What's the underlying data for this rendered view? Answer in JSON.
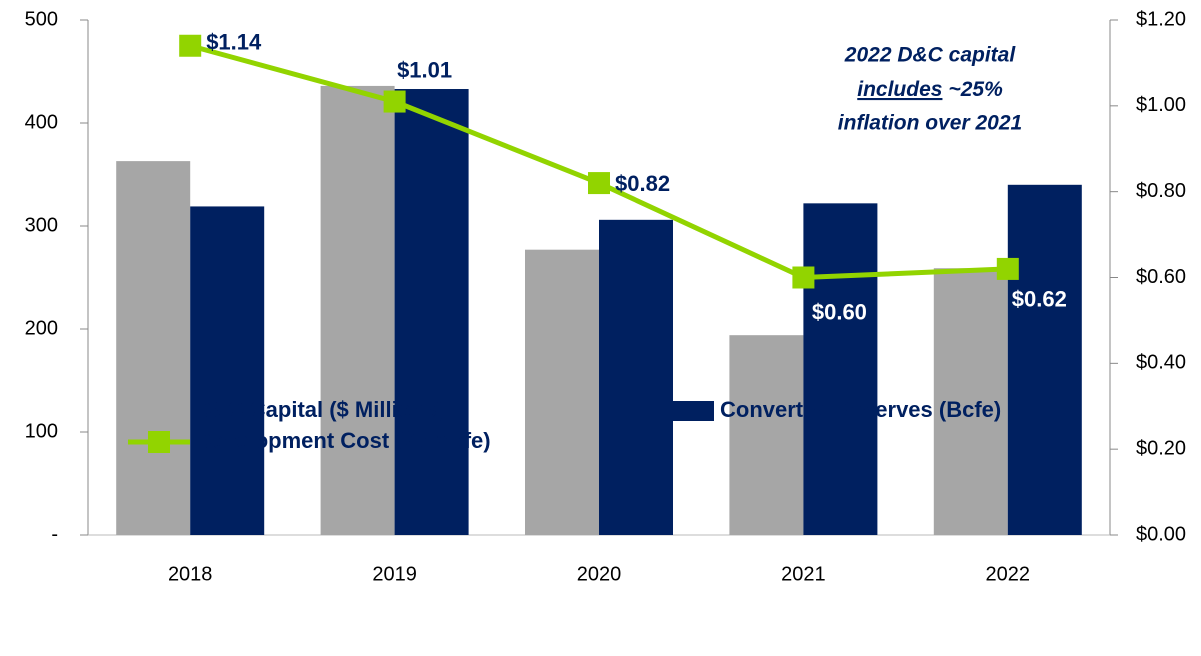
{
  "chart_data": {
    "type": "bar_line",
    "categories": [
      "2018",
      "2019",
      "2020",
      "2021",
      "2022"
    ],
    "series": [
      {
        "name": "D&C Capital ($ Millions)",
        "color": "#a6a6a6",
        "type": "bar",
        "values": [
          363,
          436,
          277,
          194,
          259
        ]
      },
      {
        "name": "Converted Reserves (Bcfe)",
        "color": "#002060",
        "type": "bar",
        "values": [
          319,
          433,
          306,
          322,
          340
        ]
      },
      {
        "name": "Development Cost ($ / Mcfe)",
        "color": "#92d400",
        "type": "line",
        "axis": "y2",
        "values": [
          1.14,
          1.01,
          0.82,
          0.6,
          0.62
        ],
        "value_labels": [
          "$1.14",
          "$1.01",
          "$0.82",
          "$0.60",
          "$0.62"
        ]
      }
    ],
    "ylim": [
      0,
      500
    ],
    "yticks": [
      {
        "value": 0,
        "label": "-"
      },
      100,
      200,
      300,
      400,
      500
    ],
    "y2lim": [
      0,
      1.2
    ],
    "y2ticks": [
      {
        "value": 0,
        "label": "$0.00"
      },
      {
        "value": 0.2,
        "label": "$0.20"
      },
      {
        "value": 0.4,
        "label": "$0.40"
      },
      {
        "value": 0.6,
        "label": "$0.60"
      },
      {
        "value": 0.8,
        "label": "$0.80"
      },
      {
        "value": 1.0,
        "label": "$1.00"
      },
      {
        "value": 1.2,
        "label": "$1.20"
      }
    ],
    "annotation": [
      "2022 D&C capital",
      "includes",
      "~25%",
      "inflation over 2021"
    ],
    "grid": false,
    "legend": "bottom"
  }
}
